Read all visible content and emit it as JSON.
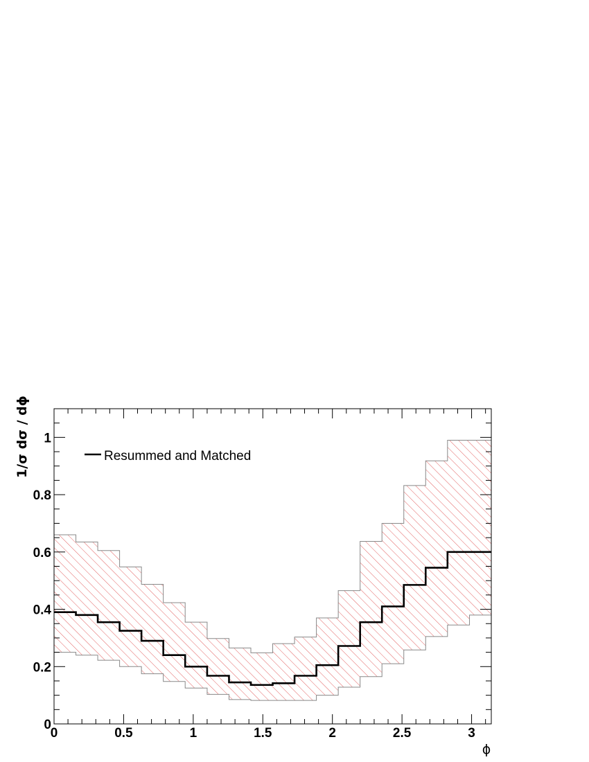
{
  "chart_data": {
    "type": "line",
    "style": "step-histogram-with-uncertainty-band",
    "xlabel": "ϕ",
    "ylabel": "1/σ dσ / dϕ",
    "xlim": [
      0,
      3.1416
    ],
    "ylim": [
      0,
      1.1
    ],
    "x_ticks": [
      0,
      0.5,
      1,
      1.5,
      2,
      2.5,
      3
    ],
    "x_tick_labels": [
      "0",
      "0.5",
      "1",
      "1.5",
      "2",
      "2.5",
      "3"
    ],
    "y_ticks": [
      0,
      0.2,
      0.4,
      0.6,
      0.8,
      1
    ],
    "y_tick_labels": [
      "0",
      "0.2",
      "0.4",
      "0.6",
      "0.8",
      "1"
    ],
    "grid": false,
    "legend": {
      "placement": "top-left",
      "entries": [
        {
          "label": "Resummed and Matched",
          "color": "#000000"
        }
      ]
    },
    "bin_edges": [
      0,
      0.157,
      0.314,
      0.471,
      0.628,
      0.785,
      0.942,
      1.1,
      1.257,
      1.414,
      1.571,
      1.728,
      1.885,
      2.042,
      2.199,
      2.356,
      2.513,
      2.67,
      2.827,
      2.985,
      3.1416
    ],
    "series": [
      {
        "name": "Resummed and Matched",
        "color": "#000000",
        "values": [
          0.39,
          0.38,
          0.355,
          0.325,
          0.29,
          0.24,
          0.2,
          0.168,
          0.145,
          0.136,
          0.142,
          0.168,
          0.205,
          0.272,
          0.355,
          0.41,
          0.485,
          0.545,
          0.6,
          0.6
        ]
      }
    ],
    "band": {
      "color": "#e05050",
      "fill": "hatched",
      "upper": [
        0.66,
        0.635,
        0.605,
        0.548,
        0.487,
        0.423,
        0.355,
        0.298,
        0.265,
        0.248,
        0.28,
        0.303,
        0.37,
        0.465,
        0.637,
        0.7,
        0.832,
        0.918,
        0.99,
        0.99
      ],
      "lower": [
        0.25,
        0.24,
        0.222,
        0.2,
        0.175,
        0.148,
        0.125,
        0.103,
        0.085,
        0.082,
        0.082,
        0.082,
        0.1,
        0.128,
        0.165,
        0.21,
        0.258,
        0.305,
        0.345,
        0.38
      ]
    }
  }
}
